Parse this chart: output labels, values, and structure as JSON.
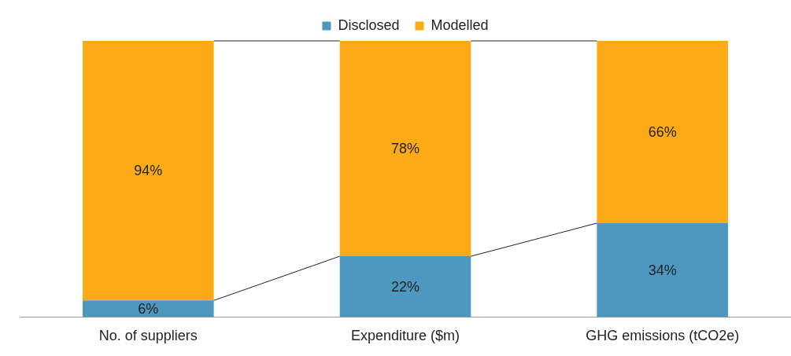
{
  "chart_data": {
    "type": "bar",
    "stacked": true,
    "legend": "top",
    "categories": [
      "No. of suppliers",
      "Expenditure ($m)",
      "GHG emissions (tCO2e)"
    ],
    "series": [
      {
        "name": "Disclosed",
        "color": "#4e98c0",
        "values": [
          6,
          22,
          34
        ],
        "value_labels": [
          "6%",
          "22%",
          "34%"
        ]
      },
      {
        "name": "Modelled",
        "color": "#fcab17",
        "values": [
          94,
          78,
          66
        ],
        "value_labels": [
          "94%",
          "78%",
          "66%"
        ]
      }
    ]
  }
}
